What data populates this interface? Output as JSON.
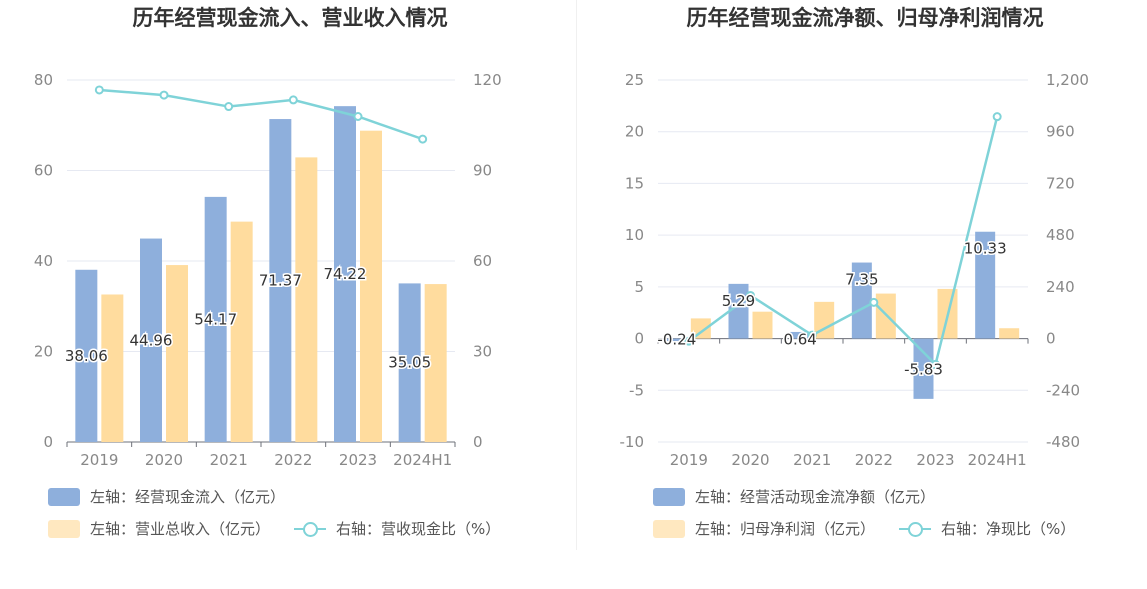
{
  "colors": {
    "bar1": "#8eafdc",
    "bar2": "#ffdc9e",
    "line": "#7fd3d8",
    "grid": "#e6e9f2",
    "axis": "#888888",
    "label": "#333333"
  },
  "chart_data": [
    {
      "type": "bar",
      "title": "历年经营现金流入、营业收入情况",
      "categories": [
        "2019",
        "2020",
        "2021",
        "2022",
        "2023",
        "2024H1"
      ],
      "left_axis": {
        "ticks": [
          "0",
          "20",
          "40",
          "60",
          "80"
        ],
        "ylim": [
          0,
          80
        ]
      },
      "right_axis": {
        "ticks": [
          "0",
          "30",
          "60",
          "90",
          "120"
        ],
        "ylim": [
          0,
          120
        ]
      },
      "series": [
        {
          "name": "左轴：经营现金流入（亿元）",
          "axis": "left",
          "kind": "bar",
          "values": [
            38.06,
            44.96,
            54.17,
            71.37,
            74.22,
            35.05
          ],
          "labels": [
            "38.06",
            "44.96",
            "54.17",
            "71.37",
            "74.22",
            "35.05"
          ]
        },
        {
          "name": "左轴：营业总收入（亿元）",
          "axis": "left",
          "kind": "bar",
          "values": [
            32.6,
            39.1,
            48.7,
            62.9,
            68.8,
            34.9
          ]
        },
        {
          "name": "右轴：营收现金比（%）",
          "axis": "right",
          "kind": "line",
          "values": [
            116.7,
            115.0,
            111.2,
            113.4,
            107.9,
            100.4
          ]
        }
      ],
      "legend_rows": [
        [
          "左轴：经营现金流入（亿元）"
        ],
        [
          "左轴：营业总收入（亿元）",
          "右轴：营收现金比（%）"
        ]
      ]
    },
    {
      "type": "bar",
      "title": "历年经营现金流净额、归母净利润情况",
      "categories": [
        "2019",
        "2020",
        "2021",
        "2022",
        "2023",
        "2024H1"
      ],
      "left_axis": {
        "ticks": [
          "-10",
          "-5",
          "0",
          "5",
          "10",
          "15",
          "20",
          "25"
        ],
        "ylim": [
          -10,
          25
        ]
      },
      "right_axis": {
        "ticks": [
          "-480",
          "-240",
          "0",
          "240",
          "480",
          "720",
          "960",
          "1,200"
        ],
        "ylim": [
          -480,
          1200
        ]
      },
      "series": [
        {
          "name": "左轴：经营活动现金流净额（亿元）",
          "axis": "left",
          "kind": "bar",
          "values": [
            -0.24,
            5.29,
            0.64,
            7.35,
            -5.83,
            10.33
          ],
          "labels": [
            "-0.24",
            "5.29",
            "0.64",
            "7.35",
            "-5.83",
            "10.33"
          ]
        },
        {
          "name": "左轴：归母净利润（亿元）",
          "axis": "left",
          "kind": "bar",
          "values": [
            1.95,
            2.6,
            3.55,
            4.35,
            4.8,
            1.0
          ]
        },
        {
          "name": "右轴：净现比（%）",
          "axis": "right",
          "kind": "line",
          "values": [
            -12,
            200,
            16,
            168,
            -120,
            1030
          ]
        }
      ],
      "legend_rows": [
        [
          "左轴：经营活动现金流净额（亿元）"
        ],
        [
          "左轴：归母净利润（亿元）",
          "右轴：净现比（%）"
        ]
      ]
    }
  ]
}
